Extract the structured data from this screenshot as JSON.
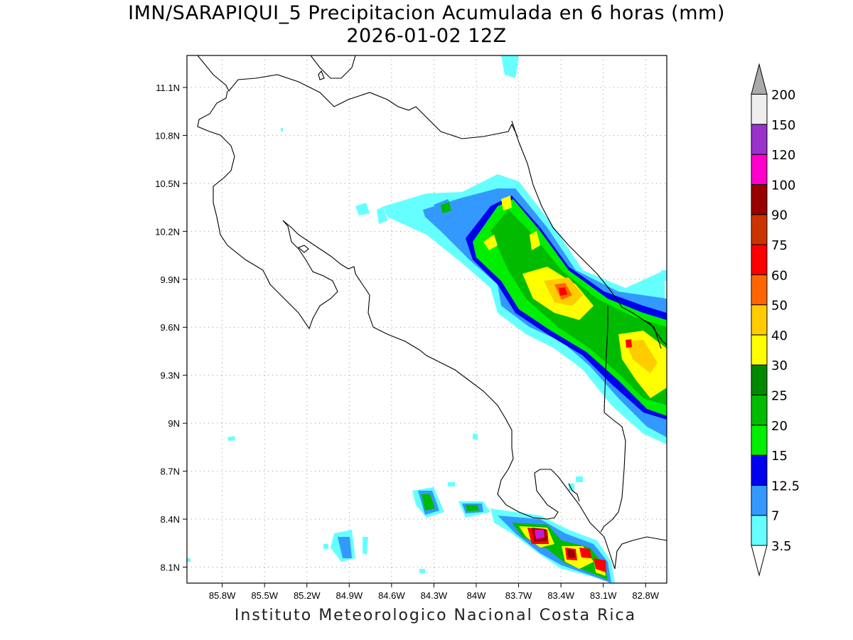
{
  "title": {
    "line1": "IMN/SARAPIQUI_5 Precipitacion Acumulada en 6 horas (mm)",
    "line2": "2026-01-02 12Z"
  },
  "credit": "Instituto Meteorologico Nacional Costa Rica",
  "map": {
    "lon_range": [
      -86.05,
      -82.65
    ],
    "lat_range": [
      8.0,
      11.3
    ],
    "lat_ticks": [
      "11.1N",
      "10.8N",
      "10.5N",
      "10.2N",
      "9.9N",
      "9.6N",
      "9.3N",
      "9N",
      "8.7N",
      "8.4N",
      "8.1N"
    ],
    "lon_ticks": [
      "85.8W",
      "85.5W",
      "85.2W",
      "84.9W",
      "84.6W",
      "84.3W",
      "84W",
      "83.7W",
      "83.4W",
      "83.1W",
      "82.8W"
    ],
    "grid": "dotted"
  },
  "colorbar": {
    "levels": [
      "3.5",
      "7",
      "12.5",
      "15",
      "20",
      "25",
      "30",
      "40",
      "50",
      "60",
      "75",
      "90",
      "100",
      "120",
      "150",
      "200"
    ],
    "colors": [
      "#66ffff",
      "#3399ff",
      "#0000ee",
      "#00ee00",
      "#00bb00",
      "#008800",
      "#ffff00",
      "#ffcc00",
      "#ff6600",
      "#ff0000",
      "#cc3300",
      "#990000",
      "#ff00cc",
      "#9933cc",
      "#eeeeee",
      "#aaaaaa"
    ]
  }
}
